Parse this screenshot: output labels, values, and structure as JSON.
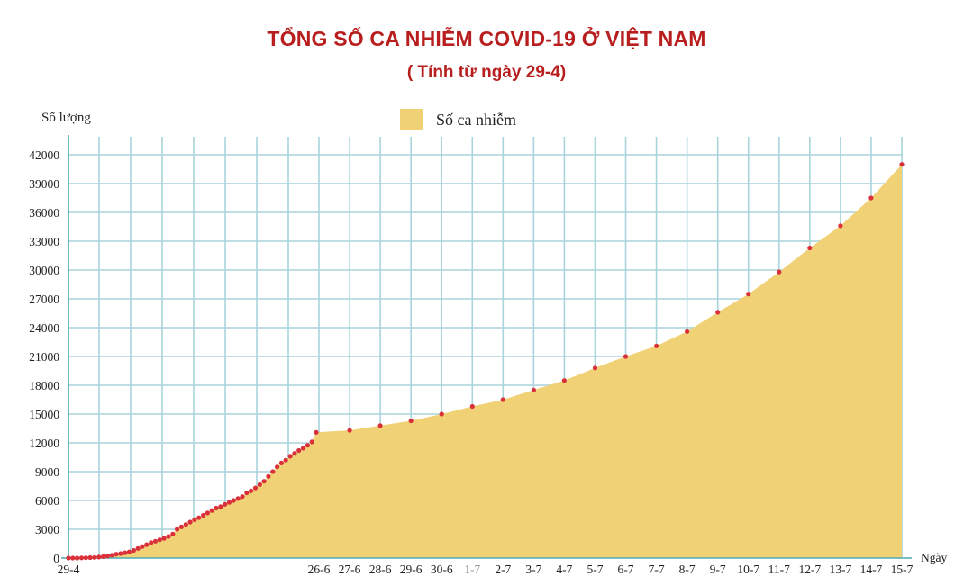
{
  "chart_data": {
    "type": "area",
    "title": "TỔNG SỐ CA NHIỄM COVID-19 Ở VIỆT NAM",
    "subtitle": "( Tính từ ngày 29-4)",
    "ylabel": "Số lượng",
    "xlabel": "Ngày",
    "legend": {
      "label": "Số ca nhiễm",
      "placement": "top"
    },
    "ylim": [
      0,
      42000
    ],
    "yticks": [
      0,
      3000,
      6000,
      9000,
      12000,
      15000,
      18000,
      21000,
      24000,
      27000,
      30000,
      33000,
      36000,
      39000,
      42000
    ],
    "grid": true,
    "colors": {
      "area": "#f0d175",
      "points": "#d9303a",
      "grid": "#a9d4dc",
      "axis": "#4fa9b6",
      "title": "#b81e1e"
    },
    "x_tick_labels": [
      {
        "day": 0,
        "text": "29-4",
        "muted": false
      },
      {
        "day": 58,
        "text": "26-6",
        "muted": false
      },
      {
        "day": 59,
        "text": "27-6",
        "muted": false
      },
      {
        "day": 60,
        "text": "28-6",
        "muted": false
      },
      {
        "day": 61,
        "text": "29-6",
        "muted": false
      },
      {
        "day": 62,
        "text": "30-6",
        "muted": false
      },
      {
        "day": 63,
        "text": "1-7",
        "muted": true
      },
      {
        "day": 64,
        "text": "2-7",
        "muted": false
      },
      {
        "day": 65,
        "text": "3-7",
        "muted": false
      },
      {
        "day": 66,
        "text": "4-7",
        "muted": false
      },
      {
        "day": 67,
        "text": "5-7",
        "muted": false
      },
      {
        "day": 68,
        "text": "6-7",
        "muted": false
      },
      {
        "day": 69,
        "text": "7-7",
        "muted": false
      },
      {
        "day": 70,
        "text": "8-7",
        "muted": false
      },
      {
        "day": 71,
        "text": "9-7",
        "muted": false
      },
      {
        "day": 72,
        "text": "10-7",
        "muted": false
      },
      {
        "day": 73,
        "text": "11-7",
        "muted": false
      },
      {
        "day": 74,
        "text": "12-7",
        "muted": false
      },
      {
        "day": 75,
        "text": "13-7",
        "muted": false
      },
      {
        "day": 76,
        "text": "14-7",
        "muted": false
      },
      {
        "day": 77,
        "text": "15-7",
        "muted": false
      }
    ],
    "series": [
      {
        "name": "Số ca nhiễm",
        "points": [
          [
            0,
            0
          ],
          [
            1,
            0
          ],
          [
            2,
            0
          ],
          [
            3,
            20
          ],
          [
            4,
            30
          ],
          [
            5,
            50
          ],
          [
            6,
            70
          ],
          [
            7,
            100
          ],
          [
            8,
            150
          ],
          [
            9,
            200
          ],
          [
            10,
            300
          ],
          [
            11,
            400
          ],
          [
            12,
            470
          ],
          [
            13,
            550
          ],
          [
            14,
            650
          ],
          [
            15,
            800
          ],
          [
            16,
            1000
          ],
          [
            17,
            1200
          ],
          [
            18,
            1400
          ],
          [
            19,
            1600
          ],
          [
            20,
            1750
          ],
          [
            21,
            1900
          ],
          [
            22,
            2050
          ],
          [
            23,
            2250
          ],
          [
            24,
            2500
          ],
          [
            25,
            3000
          ],
          [
            26,
            3250
          ],
          [
            27,
            3500
          ],
          [
            28,
            3750
          ],
          [
            29,
            4000
          ],
          [
            30,
            4200
          ],
          [
            31,
            4450
          ],
          [
            32,
            4700
          ],
          [
            33,
            4950
          ],
          [
            34,
            5200
          ],
          [
            35,
            5350
          ],
          [
            36,
            5600
          ],
          [
            37,
            5800
          ],
          [
            38,
            6000
          ],
          [
            39,
            6200
          ],
          [
            40,
            6400
          ],
          [
            41,
            6800
          ],
          [
            42,
            7000
          ],
          [
            43,
            7300
          ],
          [
            44,
            7650
          ],
          [
            45,
            8000
          ],
          [
            46,
            8500
          ],
          [
            47,
            9000
          ],
          [
            48,
            9500
          ],
          [
            49,
            9900
          ],
          [
            50,
            10200
          ],
          [
            51,
            10600
          ],
          [
            52,
            10900
          ],
          [
            53,
            11200
          ],
          [
            54,
            11450
          ],
          [
            55,
            11750
          ],
          [
            56,
            12100
          ],
          [
            57,
            13100
          ],
          [
            59,
            13300
          ],
          [
            60,
            13800
          ],
          [
            61,
            14300
          ],
          [
            62,
            15000
          ],
          [
            63,
            15800
          ],
          [
            64,
            16500
          ],
          [
            65,
            17500
          ],
          [
            66,
            18500
          ],
          [
            67,
            19800
          ],
          [
            68,
            21000
          ],
          [
            69,
            22100
          ],
          [
            70,
            23600
          ],
          [
            71,
            25600
          ],
          [
            72,
            27500
          ],
          [
            73,
            29800
          ],
          [
            74,
            32300
          ],
          [
            75,
            34600
          ],
          [
            76,
            37500
          ],
          [
            77,
            41000
          ]
        ]
      }
    ]
  }
}
